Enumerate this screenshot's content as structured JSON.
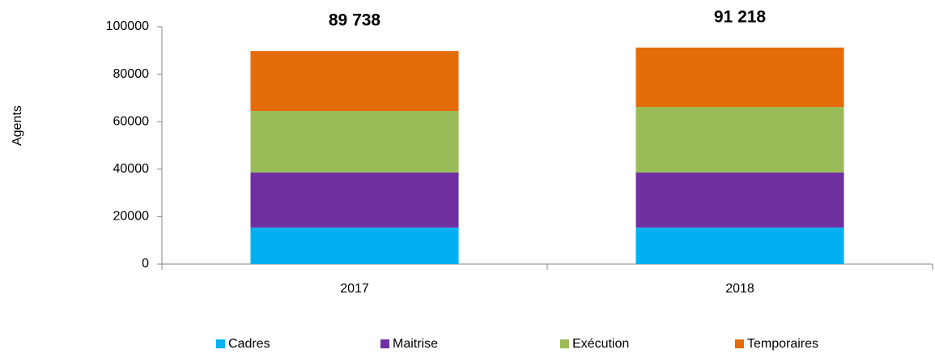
{
  "chart_data": {
    "type": "stacked_bar",
    "y_label": "Agents",
    "categories": [
      "2017",
      "2018"
    ],
    "series": [
      {
        "name": "Cadres",
        "color": "#00b0f0",
        "values": [
          15400,
          15400
        ]
      },
      {
        "name": "Maitrise",
        "color": "#7030a0",
        "values": [
          23200,
          23200
        ]
      },
      {
        "name": "Exécution",
        "color": "#9bbb59",
        "values": [
          25900,
          27600
        ]
      },
      {
        "name": "Temporaires",
        "color": "#e46c0a",
        "values": [
          25238,
          25018
        ]
      }
    ],
    "totals": [
      89738,
      91218
    ],
    "total_labels": [
      "89 738",
      "91 218"
    ],
    "ylim": [
      0,
      100000
    ],
    "yticks": [
      0,
      20000,
      40000,
      60000,
      80000,
      100000
    ],
    "grid": false
  }
}
